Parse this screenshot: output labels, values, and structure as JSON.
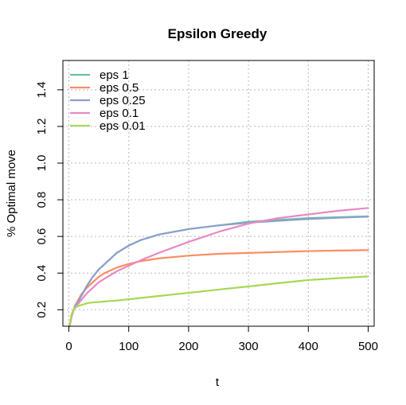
{
  "chart_data": {
    "type": "line",
    "title": "Epsilon Greedy",
    "xlabel": "t",
    "ylabel": "% Optimal move",
    "xlim": [
      -10,
      510
    ],
    "ylim": [
      0.11,
      1.56
    ],
    "xticks": [
      0,
      100,
      200,
      300,
      400,
      500
    ],
    "yticks": [
      0.2,
      0.4,
      0.6,
      0.8,
      1.0,
      1.2,
      1.4
    ],
    "xtick_labels": [
      "0",
      "100",
      "200",
      "300",
      "400",
      "500"
    ],
    "ytick_labels": [
      "0.2",
      "0.4",
      "0.6",
      "0.8",
      "1.0",
      "1.2",
      "1.4"
    ],
    "grid": true,
    "legend_position": "top-left",
    "series": [
      {
        "name": "eps 1",
        "color": "#66c2a5",
        "x": [
          1,
          3,
          5,
          8,
          10,
          15,
          20,
          30,
          40,
          50,
          60,
          70,
          80,
          100,
          120,
          150,
          200,
          250,
          300,
          350,
          400,
          450,
          500
        ],
        "y": [
          0.11,
          0.14,
          0.17,
          0.2,
          0.22,
          0.24,
          0.27,
          0.33,
          0.38,
          0.42,
          0.45,
          0.48,
          0.51,
          0.55,
          0.58,
          0.61,
          0.64,
          0.66,
          0.68,
          0.69,
          0.7,
          0.705,
          0.71
        ]
      },
      {
        "name": "eps 0.5",
        "color": "#fc8d62",
        "x": [
          1,
          3,
          5,
          8,
          10,
          15,
          20,
          30,
          40,
          50,
          60,
          70,
          80,
          100,
          120,
          150,
          200,
          250,
          300,
          350,
          400,
          450,
          500
        ],
        "y": [
          0.11,
          0.14,
          0.17,
          0.2,
          0.22,
          0.25,
          0.28,
          0.32,
          0.35,
          0.38,
          0.4,
          0.415,
          0.43,
          0.45,
          0.465,
          0.48,
          0.495,
          0.505,
          0.51,
          0.515,
          0.52,
          0.523,
          0.525
        ]
      },
      {
        "name": "eps 0.25",
        "color": "#8da0cb",
        "x": [
          1,
          3,
          5,
          8,
          10,
          15,
          20,
          30,
          40,
          50,
          60,
          70,
          80,
          100,
          120,
          150,
          200,
          250,
          300,
          350,
          400,
          450,
          500
        ],
        "y": [
          0.11,
          0.14,
          0.17,
          0.2,
          0.22,
          0.24,
          0.27,
          0.33,
          0.38,
          0.42,
          0.45,
          0.48,
          0.51,
          0.55,
          0.58,
          0.61,
          0.64,
          0.66,
          0.675,
          0.685,
          0.695,
          0.702,
          0.708
        ]
      },
      {
        "name": "eps 0.1",
        "color": "#e78ac3",
        "x": [
          1,
          3,
          5,
          8,
          10,
          15,
          20,
          30,
          40,
          50,
          60,
          70,
          80,
          100,
          120,
          150,
          200,
          250,
          300,
          350,
          400,
          450,
          500
        ],
        "y": [
          0.11,
          0.14,
          0.17,
          0.2,
          0.21,
          0.23,
          0.25,
          0.29,
          0.32,
          0.35,
          0.37,
          0.39,
          0.41,
          0.44,
          0.47,
          0.51,
          0.57,
          0.625,
          0.67,
          0.7,
          0.72,
          0.74,
          0.755
        ]
      },
      {
        "name": "eps 0.01",
        "color": "#a6d854",
        "x": [
          1,
          3,
          5,
          8,
          10,
          15,
          20,
          30,
          40,
          50,
          60,
          70,
          80,
          100,
          120,
          150,
          200,
          250,
          300,
          350,
          400,
          450,
          500
        ],
        "y": [
          0.11,
          0.15,
          0.18,
          0.2,
          0.21,
          0.22,
          0.225,
          0.235,
          0.24,
          0.242,
          0.245,
          0.248,
          0.25,
          0.257,
          0.264,
          0.275,
          0.292,
          0.31,
          0.327,
          0.345,
          0.362,
          0.372,
          0.382
        ]
      }
    ]
  }
}
